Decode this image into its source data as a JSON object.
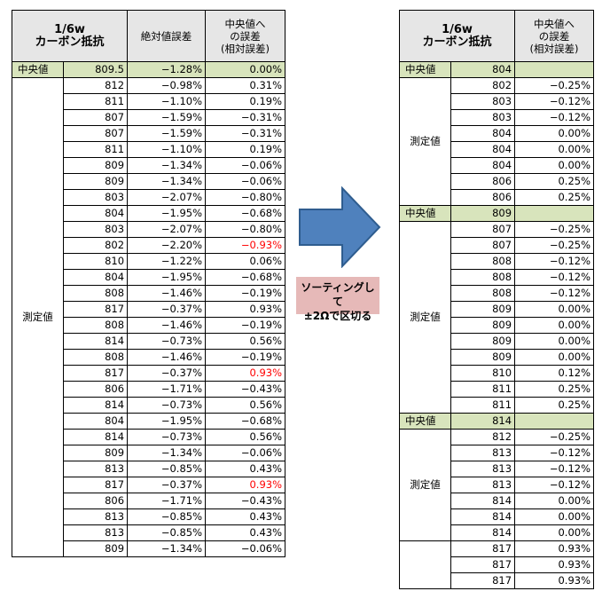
{
  "left_table": {
    "headers": {
      "title": [
        "1/6w",
        "カーボン抵抗"
      ],
      "abs_error": "絶対値誤差",
      "rel_error": [
        "中央値へ",
        "の誤差",
        "(相対誤差)"
      ]
    },
    "center_row": {
      "label": "中央値",
      "value": "809.5",
      "abs": "−1.28%",
      "rel": "0.00%"
    },
    "measured_label": "測定値",
    "rows": [
      {
        "value": "812",
        "abs": "−0.98%",
        "rel": "0.31%"
      },
      {
        "value": "811",
        "abs": "−1.10%",
        "rel": "0.19%"
      },
      {
        "value": "807",
        "abs": "−1.59%",
        "rel": "−0.31%"
      },
      {
        "value": "807",
        "abs": "−1.59%",
        "rel": "−0.31%"
      },
      {
        "value": "811",
        "abs": "−1.10%",
        "rel": "0.19%"
      },
      {
        "value": "809",
        "abs": "−1.34%",
        "rel": "−0.06%"
      },
      {
        "value": "809",
        "abs": "−1.34%",
        "rel": "−0.06%"
      },
      {
        "value": "803",
        "abs": "−2.07%",
        "rel": "−0.80%"
      },
      {
        "value": "804",
        "abs": "−1.95%",
        "rel": "−0.68%"
      },
      {
        "value": "803",
        "abs": "−2.07%",
        "rel": "−0.80%"
      },
      {
        "value": "802",
        "abs": "−2.20%",
        "rel": "−0.93%",
        "highlight": true
      },
      {
        "value": "810",
        "abs": "−1.22%",
        "rel": "0.06%"
      },
      {
        "value": "804",
        "abs": "−1.95%",
        "rel": "−0.68%"
      },
      {
        "value": "808",
        "abs": "−1.46%",
        "rel": "−0.19%"
      },
      {
        "value": "817",
        "abs": "−0.37%",
        "rel": "0.93%"
      },
      {
        "value": "808",
        "abs": "−1.46%",
        "rel": "−0.19%"
      },
      {
        "value": "814",
        "abs": "−0.73%",
        "rel": "0.56%"
      },
      {
        "value": "808",
        "abs": "−1.46%",
        "rel": "−0.19%"
      },
      {
        "value": "817",
        "abs": "−0.37%",
        "rel": "0.93%",
        "highlight": true
      },
      {
        "value": "806",
        "abs": "−1.71%",
        "rel": "−0.43%"
      },
      {
        "value": "814",
        "abs": "−0.73%",
        "rel": "0.56%"
      },
      {
        "value": "804",
        "abs": "−1.95%",
        "rel": "−0.68%"
      },
      {
        "value": "814",
        "abs": "−0.73%",
        "rel": "0.56%"
      },
      {
        "value": "809",
        "abs": "−1.34%",
        "rel": "−0.06%"
      },
      {
        "value": "813",
        "abs": "−0.85%",
        "rel": "0.43%"
      },
      {
        "value": "817",
        "abs": "−0.37%",
        "rel": "0.93%",
        "highlight": true
      },
      {
        "value": "806",
        "abs": "−1.71%",
        "rel": "−0.43%"
      },
      {
        "value": "813",
        "abs": "−0.85%",
        "rel": "0.43%"
      },
      {
        "value": "813",
        "abs": "−0.85%",
        "rel": "0.43%"
      },
      {
        "value": "809",
        "abs": "−1.34%",
        "rel": "−0.06%"
      }
    ]
  },
  "arrow": {
    "color": "#4f81bd",
    "icon": "right-arrow-icon"
  },
  "note": {
    "line1": "ソーティングして",
    "line2": "±2Ωで区切る",
    "color": "#e6b9b8"
  },
  "right_table": {
    "headers": {
      "title": [
        "1/6w",
        "カーボン抵抗"
      ],
      "rel_error": [
        "中央値へ",
        "の誤差",
        "(相対誤差)"
      ]
    },
    "groups": [
      {
        "center": {
          "label": "中央値",
          "value": "804"
        },
        "label": "測定値",
        "rows": [
          {
            "value": "802",
            "rel": "−0.25%"
          },
          {
            "value": "803",
            "rel": "−0.12%"
          },
          {
            "value": "803",
            "rel": "−0.12%"
          },
          {
            "value": "804",
            "rel": "0.00%"
          },
          {
            "value": "804",
            "rel": "0.00%"
          },
          {
            "value": "804",
            "rel": "0.00%"
          },
          {
            "value": "806",
            "rel": "0.25%"
          },
          {
            "value": "806",
            "rel": "0.25%"
          }
        ]
      },
      {
        "center": {
          "label": "中央値",
          "value": "809"
        },
        "label": "測定値",
        "rows": [
          {
            "value": "807",
            "rel": "−0.25%"
          },
          {
            "value": "807",
            "rel": "−0.25%"
          },
          {
            "value": "808",
            "rel": "−0.12%"
          },
          {
            "value": "808",
            "rel": "−0.12%"
          },
          {
            "value": "808",
            "rel": "−0.12%"
          },
          {
            "value": "809",
            "rel": "0.00%"
          },
          {
            "value": "809",
            "rel": "0.00%"
          },
          {
            "value": "809",
            "rel": "0.00%"
          },
          {
            "value": "809",
            "rel": "0.00%"
          },
          {
            "value": "810",
            "rel": "0.12%"
          },
          {
            "value": "811",
            "rel": "0.25%"
          },
          {
            "value": "811",
            "rel": "0.25%"
          }
        ]
      },
      {
        "center": {
          "label": "中央値",
          "value": "814"
        },
        "label": "測定値",
        "rows": [
          {
            "value": "812",
            "rel": "−0.25%"
          },
          {
            "value": "813",
            "rel": "−0.12%"
          },
          {
            "value": "813",
            "rel": "−0.12%"
          },
          {
            "value": "813",
            "rel": "−0.12%"
          },
          {
            "value": "814",
            "rel": "0.00%"
          },
          {
            "value": "814",
            "rel": "0.00%"
          },
          {
            "value": "814",
            "rel": "0.00%"
          }
        ]
      },
      {
        "center": null,
        "label": "",
        "rows": [
          {
            "value": "817",
            "rel": "0.93%"
          },
          {
            "value": "817",
            "rel": "0.93%"
          },
          {
            "value": "817",
            "rel": "0.93%"
          }
        ]
      }
    ]
  }
}
